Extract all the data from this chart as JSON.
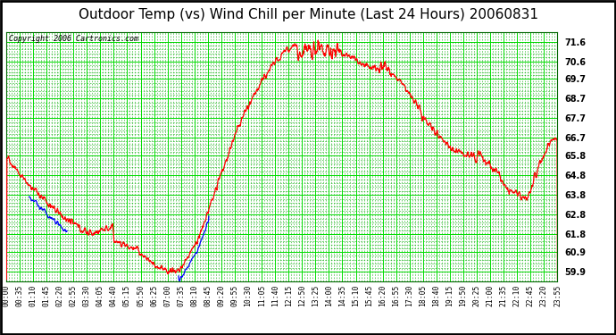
{
  "title": "Outdoor Temp (vs) Wind Chill per Minute (Last 24 Hours) 20060831",
  "copyright": "Copyright 2006 Cartronics.com",
  "bg_color": "#ffffff",
  "plot_bg_color": "#ffffff",
  "grid_major_color": "#00dd00",
  "grid_minor_color": "#00aa00",
  "line_red": "#ff0000",
  "line_blue": "#0000ff",
  "yticks": [
    59.9,
    60.9,
    61.8,
    62.8,
    63.8,
    64.8,
    65.8,
    66.7,
    67.7,
    68.7,
    69.7,
    70.6,
    71.6
  ],
  "ylim": [
    59.4,
    72.1
  ],
  "xtick_labels": [
    "00:00",
    "00:35",
    "01:10",
    "01:45",
    "02:20",
    "02:55",
    "03:30",
    "04:05",
    "04:40",
    "05:15",
    "05:50",
    "06:25",
    "07:00",
    "07:35",
    "08:10",
    "08:45",
    "09:20",
    "09:55",
    "10:30",
    "11:05",
    "11:40",
    "12:15",
    "12:50",
    "13:25",
    "14:00",
    "14:35",
    "15:10",
    "15:45",
    "16:20",
    "16:55",
    "17:30",
    "18:05",
    "18:40",
    "19:15",
    "19:50",
    "20:25",
    "21:00",
    "21:35",
    "22:10",
    "22:45",
    "23:20",
    "23:55"
  ],
  "title_fontsize": 11,
  "copyright_fontsize": 6,
  "tick_fontsize": 7,
  "border_color": "#000000"
}
